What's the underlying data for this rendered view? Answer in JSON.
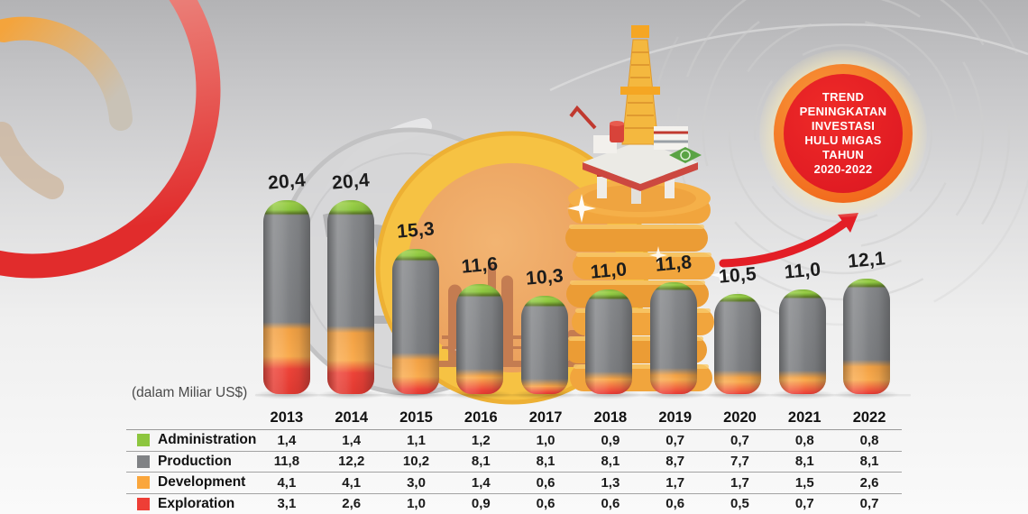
{
  "unit_note": "(dalam Miliar US$)",
  "badge": {
    "lines": [
      "TREND",
      "PENINGKATAN",
      "INVESTASI",
      "HULU MIGAS",
      "TAHUN",
      "2020-2022"
    ],
    "text_color": "#ffffff",
    "core_color": "#e11c23",
    "ring_color": "#f26c1e",
    "glow_color": "#f1e6bd"
  },
  "colors": {
    "administration": "#8dc63f",
    "production": "#808285",
    "development": "#faa63c",
    "exploration": "#ee3e36",
    "arrow_red": "#e31e26",
    "value_label": "#1c1c1c"
  },
  "icons": [
    "coin-icon",
    "pumpjack-icon",
    "refinery-icon",
    "oil-rig-icon",
    "sparkle-icon",
    "trend-arrow-icon",
    "decorative-rings"
  ],
  "chart_data": {
    "type": "bar",
    "stacked": true,
    "title": "",
    "xlabel": "",
    "ylabel": "(dalam Miliar US$)",
    "ylim": [
      0,
      21
    ],
    "grid": false,
    "legend_position": "table-left",
    "categories": [
      "2013",
      "2014",
      "2015",
      "2016",
      "2017",
      "2018",
      "2019",
      "2020",
      "2021",
      "2022"
    ],
    "totals": [
      20.4,
      20.4,
      15.3,
      11.6,
      10.3,
      11.0,
      11.8,
      10.5,
      11.0,
      12.1
    ],
    "totals_display": [
      "20,4",
      "20,4",
      "15,3",
      "11,6",
      "10,3",
      "11,0",
      "11,8",
      "10,5",
      "11,0",
      "12,1"
    ],
    "stack_order_top_to_bottom": [
      "Administration",
      "Production",
      "Development",
      "Exploration"
    ],
    "series": [
      {
        "name": "Administration",
        "color": "#8dc63f",
        "values": [
          1.4,
          1.4,
          1.1,
          1.2,
          1.0,
          0.9,
          0.7,
          0.7,
          0.8,
          0.8
        ],
        "display": [
          "1,4",
          "1,4",
          "1,1",
          "1,2",
          "1,0",
          "0,9",
          "0,7",
          "0,7",
          "0,8",
          "0,8"
        ]
      },
      {
        "name": "Production",
        "color": "#808285",
        "values": [
          11.8,
          12.2,
          10.2,
          8.1,
          8.1,
          8.1,
          8.7,
          7.7,
          8.1,
          8.1
        ],
        "display": [
          "11,8",
          "12,2",
          "10,2",
          "8,1",
          "8,1",
          "8,1",
          "8,7",
          "7,7",
          "8,1",
          "8,1"
        ]
      },
      {
        "name": "Development",
        "color": "#faa63c",
        "values": [
          4.1,
          4.1,
          3.0,
          1.4,
          0.6,
          1.3,
          1.7,
          1.7,
          1.5,
          2.6
        ],
        "display": [
          "4,1",
          "4,1",
          "3,0",
          "1,4",
          "0,6",
          "1,3",
          "1,7",
          "1,7",
          "1,5",
          "2,6"
        ]
      },
      {
        "name": "Exploration",
        "color": "#ee3e36",
        "values": [
          3.1,
          2.6,
          1.0,
          0.9,
          0.6,
          0.6,
          0.6,
          0.5,
          0.7,
          0.7
        ],
        "display": [
          "3,1",
          "2,6",
          "1,0",
          "0,9",
          "0,6",
          "0,6",
          "0,6",
          "0,5",
          "0,7",
          "0,7"
        ]
      }
    ]
  }
}
